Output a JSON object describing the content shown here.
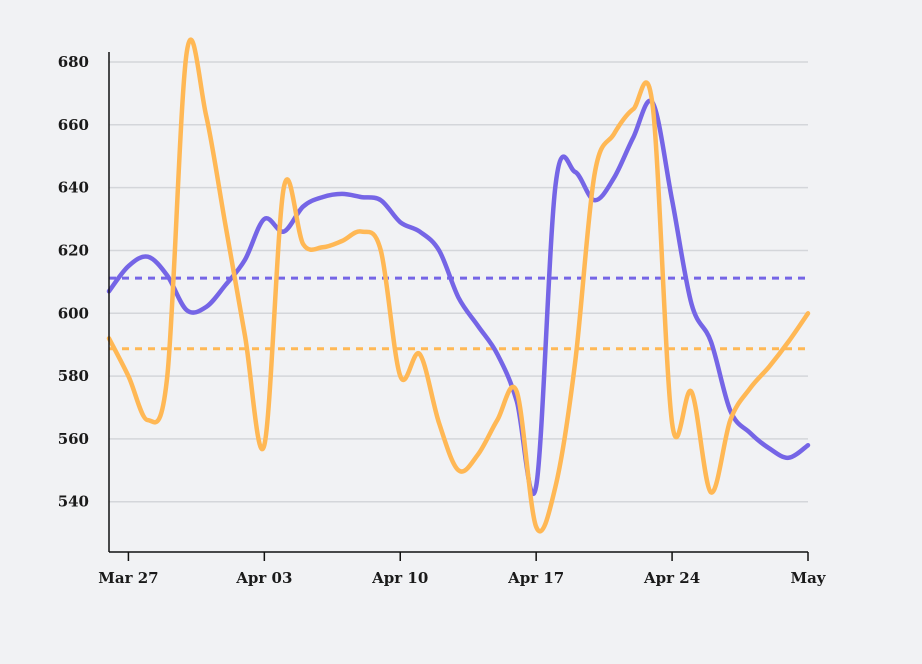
{
  "chart_data": {
    "type": "line",
    "title": "",
    "xlabel": "",
    "ylabel": "",
    "x_range": [
      "2025-03-26",
      "2025-05-01"
    ],
    "ylim": [
      524,
      687
    ],
    "y_ticks": [
      540,
      560,
      580,
      600,
      620,
      640,
      660,
      680
    ],
    "x_ticks": [
      {
        "date": "2025-03-27",
        "label": "Mar 27"
      },
      {
        "date": "2025-04-03",
        "label": "Apr 03"
      },
      {
        "date": "2025-04-10",
        "label": "Apr 10"
      },
      {
        "date": "2025-04-17",
        "label": "Apr 17"
      },
      {
        "date": "2025-04-24",
        "label": "Apr 24"
      },
      {
        "date": "2025-05-01",
        "label": "May"
      }
    ],
    "grid": "horizontal",
    "legend": "none",
    "series": [
      {
        "color": "#7565e6",
        "mean": 611.2,
        "points": [
          [
            "2025-03-26",
            607
          ],
          [
            "2025-03-27",
            615
          ],
          [
            "2025-03-28",
            618
          ],
          [
            "2025-03-29",
            612
          ],
          [
            "2025-03-30",
            601
          ],
          [
            "2025-03-31",
            602
          ],
          [
            "2025-04-01",
            609
          ],
          [
            "2025-04-02",
            617
          ],
          [
            "2025-04-03",
            630
          ],
          [
            "2025-04-04",
            626
          ],
          [
            "2025-04-05",
            634
          ],
          [
            "2025-04-06",
            637
          ],
          [
            "2025-04-07",
            638
          ],
          [
            "2025-04-08",
            637
          ],
          [
            "2025-04-09",
            636
          ],
          [
            "2025-04-10",
            629
          ],
          [
            "2025-04-11",
            626
          ],
          [
            "2025-04-12",
            620
          ],
          [
            "2025-04-13",
            605
          ],
          [
            "2025-04-14",
            596
          ],
          [
            "2025-04-15",
            587
          ],
          [
            "2025-04-16",
            572
          ],
          [
            "2025-04-17",
            545
          ],
          [
            "2025-04-18",
            641
          ],
          [
            "2025-04-19",
            645
          ],
          [
            "2025-04-20",
            636
          ],
          [
            "2025-04-21",
            643
          ],
          [
            "2025-04-22",
            656
          ],
          [
            "2025-04-23",
            667
          ],
          [
            "2025-04-24",
            636
          ],
          [
            "2025-04-25",
            603
          ],
          [
            "2025-04-26",
            591
          ],
          [
            "2025-04-27",
            569
          ],
          [
            "2025-04-28",
            562
          ],
          [
            "2025-04-29",
            557
          ],
          [
            "2025-04-30",
            554
          ],
          [
            "2025-05-01",
            558
          ]
        ]
      },
      {
        "color": "#ffb855",
        "mean": 588.7,
        "points": [
          [
            "2025-03-26",
            592
          ],
          [
            "2025-03-27",
            580
          ],
          [
            "2025-03-28",
            566
          ],
          [
            "2025-03-29",
            580
          ],
          [
            "2025-03-30",
            683
          ],
          [
            "2025-03-31",
            663
          ],
          [
            "2025-04-01",
            628
          ],
          [
            "2025-04-02",
            593
          ],
          [
            "2025-04-03",
            558
          ],
          [
            "2025-04-04",
            640
          ],
          [
            "2025-04-05",
            622
          ],
          [
            "2025-04-06",
            621
          ],
          [
            "2025-04-07",
            623
          ],
          [
            "2025-04-08",
            626
          ],
          [
            "2025-04-09",
            620
          ],
          [
            "2025-04-10",
            580
          ],
          [
            "2025-04-11",
            587
          ],
          [
            "2025-04-12",
            565
          ],
          [
            "2025-04-13",
            550
          ],
          [
            "2025-04-14",
            555
          ],
          [
            "2025-04-15",
            566
          ],
          [
            "2025-04-16",
            575
          ],
          [
            "2025-04-17",
            532
          ],
          [
            "2025-04-18",
            545
          ],
          [
            "2025-04-19",
            584
          ],
          [
            "2025-04-20",
            644
          ],
          [
            "2025-04-21",
            657
          ],
          [
            "2025-04-22",
            665
          ],
          [
            "2025-04-23",
            666
          ],
          [
            "2025-04-24",
            565
          ],
          [
            "2025-04-25",
            575
          ],
          [
            "2025-04-26",
            543
          ],
          [
            "2025-04-27",
            566
          ],
          [
            "2025-04-28",
            576
          ],
          [
            "2025-04-29",
            583
          ],
          [
            "2025-04-30",
            591
          ],
          [
            "2025-05-01",
            600
          ]
        ]
      }
    ]
  }
}
